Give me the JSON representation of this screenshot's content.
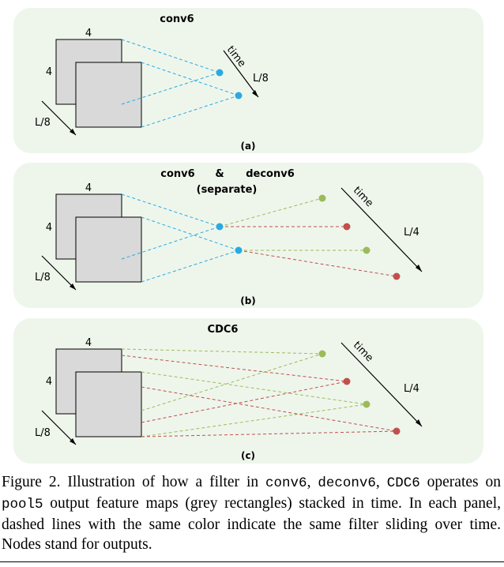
{
  "colors": {
    "panel_bg": "#eef6ec",
    "blue": "#29aae1",
    "green": "#9bbb59",
    "red": "#c0504d",
    "grey_rect": "#d9d9d9"
  },
  "panels": [
    {
      "title": "conv6",
      "title2": "",
      "title3": "",
      "label": "(a)",
      "dim_top": "4",
      "dim_left": "4",
      "dim_depth": "L/8",
      "time": "time",
      "time_len": "L/8"
    },
    {
      "title": "conv6",
      "title2": "&",
      "title3": "deconv6",
      "subtitle": "(separate)",
      "label": "(b)",
      "dim_top": "4",
      "dim_left": "4",
      "dim_depth": "L/8",
      "time": "time",
      "time_len": "L/4"
    },
    {
      "title": "CDC6",
      "title2": "",
      "title3": "",
      "label": "(c)",
      "dim_top": "4",
      "dim_left": "4",
      "dim_depth": "L/8",
      "time": "time",
      "time_len": "L/4"
    }
  ],
  "caption": {
    "p1": "Figure 2. Illustration of how a filter in ",
    "c1": "conv6",
    "p2": ", ",
    "c2": "deconv6",
    "p3": ", ",
    "c3": "CDC6",
    "p4": " operates on ",
    "c4": "pool5",
    "p5": " output feature maps (grey rectangles) stacked in time. In each panel, dashed lines with the same color indicate the same filter sliding over time. Nodes stand for outputs."
  }
}
